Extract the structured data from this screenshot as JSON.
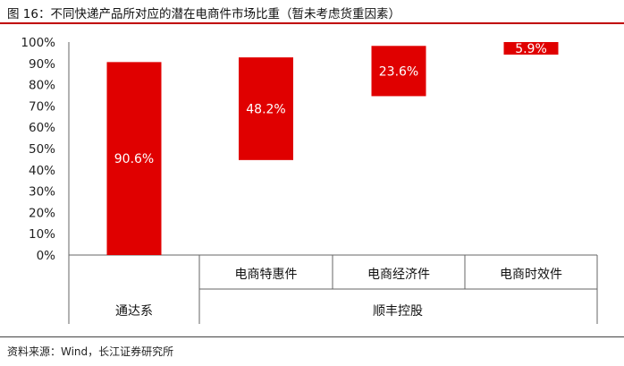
{
  "title": "图 16：不同快递产品所对应的潜在电商件市场比重（暂未考虑货重因素）",
  "source": "资料来源：Wind，长江证券研究所",
  "colors": {
    "bar": "#e00000",
    "title_rule": "#c00000",
    "label_text": "#ffffff"
  },
  "chart_data": {
    "type": "bar",
    "subtype": "waterfall",
    "title": "图 16：不同快递产品所对应的潜在电商件市场比重（暂未考虑货重因素）",
    "categories": [
      "通达系",
      "电商特惠件",
      "电商经济件",
      "电商时效件"
    ],
    "groups": [
      {
        "label": "通达系",
        "categories": [
          "通达系"
        ]
      },
      {
        "label": "顺丰控股",
        "categories": [
          "电商特惠件",
          "电商经济件",
          "电商时效件"
        ]
      }
    ],
    "values": [
      90.6,
      48.2,
      23.6,
      5.9
    ],
    "ranges": [
      [
        0,
        90.6
      ],
      [
        44.6,
        92.8
      ],
      [
        74.6,
        98.2
      ],
      [
        94.1,
        100.0
      ]
    ],
    "value_labels": [
      "90.6%",
      "48.2%",
      "23.6%",
      "5.9%"
    ],
    "y_ticks": [
      "0%",
      "10%",
      "20%",
      "30%",
      "40%",
      "50%",
      "60%",
      "70%",
      "80%",
      "90%",
      "100%"
    ],
    "ylim": [
      0,
      100
    ],
    "xlabel": "",
    "ylabel": "",
    "grid": false,
    "legend": "none"
  }
}
